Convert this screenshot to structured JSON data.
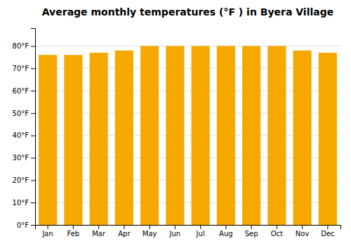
{
  "chart_data": {
    "type": "bar",
    "title": "Average monthly temperatures (°F ) in Byera Village",
    "categories": [
      "Jan",
      "Feb",
      "Mar",
      "Apr",
      "May",
      "Jun",
      "Jul",
      "Aug",
      "Sep",
      "Oct",
      "Nov",
      "Dec"
    ],
    "values": [
      76,
      76,
      77,
      78,
      80,
      80,
      80,
      80,
      80,
      80,
      78,
      77
    ],
    "color": "#F5A800",
    "ylim": [
      0,
      88
    ],
    "yticks": [
      {
        "value": 0,
        "label": "0°F"
      },
      {
        "value": 10,
        "label": "10°F"
      },
      {
        "value": 20,
        "label": "20°F"
      },
      {
        "value": 30,
        "label": "30°F"
      },
      {
        "value": 40,
        "label": "40°F"
      },
      {
        "value": 50,
        "label": "50°F"
      },
      {
        "value": 60,
        "label": "60°F"
      },
      {
        "value": 70,
        "label": "70°F"
      },
      {
        "value": 80,
        "label": "80°F"
      }
    ],
    "grid": true
  }
}
